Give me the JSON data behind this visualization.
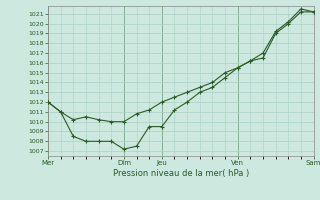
{
  "title": "Pression niveau de la mer( hPa )",
  "bg_color": "#cce8df",
  "grid_color": "#aacfc5",
  "line_color": "#2d5a27",
  "spine_color": "#888888",
  "ylim": [
    1006.5,
    1021.8
  ],
  "yticks": [
    1007,
    1008,
    1009,
    1010,
    1011,
    1012,
    1013,
    1014,
    1015,
    1016,
    1017,
    1018,
    1019,
    1020,
    1021
  ],
  "xtick_labels": [
    "Mer",
    "Dim",
    "Jeu",
    "Ven",
    "Sam"
  ],
  "xtick_positions": [
    0,
    6,
    9,
    15,
    21
  ],
  "day_lines_x": [
    0,
    6,
    9,
    15,
    21
  ],
  "series1_x": [
    0,
    1,
    2,
    3,
    4,
    5,
    6,
    7,
    8,
    9,
    10,
    11,
    12,
    13,
    14,
    15,
    16,
    17,
    18,
    19,
    20,
    21
  ],
  "series1_y": [
    1012.0,
    1011.0,
    1010.2,
    1010.5,
    1010.2,
    1010.0,
    1010.0,
    1010.8,
    1011.2,
    1012.0,
    1012.5,
    1013.0,
    1013.5,
    1014.0,
    1015.0,
    1015.5,
    1016.2,
    1016.5,
    1019.0,
    1020.0,
    1021.2,
    1021.2
  ],
  "series2_x": [
    0,
    1,
    2,
    3,
    4,
    5,
    6,
    7,
    8,
    9,
    10,
    11,
    12,
    13,
    14,
    15,
    16,
    17,
    18,
    19,
    20,
    21
  ],
  "series2_y": [
    1012.0,
    1011.0,
    1008.5,
    1008.0,
    1008.0,
    1008.0,
    1007.2,
    1007.5,
    1009.5,
    1009.5,
    1011.2,
    1012.0,
    1013.0,
    1013.5,
    1014.5,
    1015.5,
    1016.2,
    1017.0,
    1019.2,
    1020.2,
    1021.5,
    1021.2
  ]
}
